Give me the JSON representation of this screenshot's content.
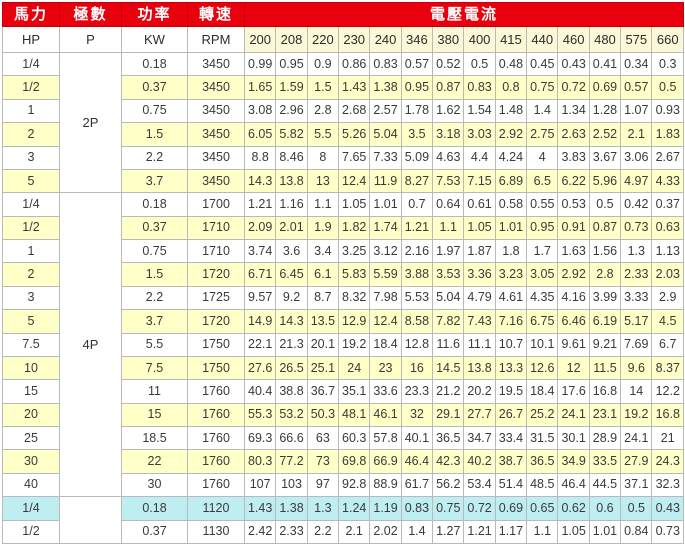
{
  "table": {
    "groups": {
      "hp": "馬力",
      "poles": "極數",
      "power": "功率",
      "speed": "轉速",
      "voltage_current": "電壓電流"
    },
    "unit_headers": [
      "HP",
      "P",
      "KW",
      "RPM"
    ],
    "voltage_headers": [
      "200",
      "208",
      "220",
      "230",
      "240",
      "346",
      "380",
      "400",
      "415",
      "440",
      "460",
      "480",
      "575",
      "660"
    ],
    "colors": {
      "header_band_red": "#e8000d",
      "row_yellow": "#ffffc8",
      "row_cyan": "#bfeef2",
      "grid_line": "#b9b9b9"
    },
    "sections": [
      {
        "pole_label": "2P",
        "rows": [
          {
            "hp": "1/4",
            "kw": "0.18",
            "rpm": "3450",
            "bg": "w",
            "currents": [
              "0.99",
              "0.95",
              "0.9",
              "0.86",
              "0.83",
              "0.57",
              "0.52",
              "0.5",
              "0.48",
              "0.45",
              "0.43",
              "0.41",
              "0.34",
              "0.3"
            ]
          },
          {
            "hp": "1/2",
            "kw": "0.37",
            "rpm": "3450",
            "bg": "y",
            "currents": [
              "1.65",
              "1.59",
              "1.5",
              "1.43",
              "1.38",
              "0.95",
              "0.87",
              "0.83",
              "0.8",
              "0.75",
              "0.72",
              "0.69",
              "0.57",
              "0.5"
            ]
          },
          {
            "hp": "1",
            "kw": "0.75",
            "rpm": "3450",
            "bg": "w",
            "currents": [
              "3.08",
              "2.96",
              "2.8",
              "2.68",
              "2.57",
              "1.78",
              "1.62",
              "1.54",
              "1.48",
              "1.4",
              "1.34",
              "1.28",
              "1.07",
              "0.93"
            ]
          },
          {
            "hp": "2",
            "kw": "1.5",
            "rpm": "3450",
            "bg": "y",
            "currents": [
              "6.05",
              "5.82",
              "5.5",
              "5.26",
              "5.04",
              "3.5",
              "3.18",
              "3.03",
              "2.92",
              "2.75",
              "2.63",
              "2.52",
              "2.1",
              "1.83"
            ]
          },
          {
            "hp": "3",
            "kw": "2.2",
            "rpm": "3450",
            "bg": "w",
            "currents": [
              "8.8",
              "8.46",
              "8",
              "7.65",
              "7.33",
              "5.09",
              "4.63",
              "4.4",
              "4.24",
              "4",
              "3.83",
              "3.67",
              "3.06",
              "2.67"
            ]
          },
          {
            "hp": "5",
            "kw": "3.7",
            "rpm": "3450",
            "bg": "y",
            "currents": [
              "14.3",
              "13.8",
              "13",
              "12.4",
              "11.9",
              "8.27",
              "7.53",
              "7.15",
              "6.89",
              "6.5",
              "6.22",
              "5.96",
              "4.97",
              "4.33"
            ]
          }
        ]
      },
      {
        "pole_label": "4P",
        "rows": [
          {
            "hp": "1/4",
            "kw": "0.18",
            "rpm": "1700",
            "bg": "w",
            "currents": [
              "1.21",
              "1.16",
              "1.1",
              "1.05",
              "1.01",
              "0.7",
              "0.64",
              "0.61",
              "0.58",
              "0.55",
              "0.53",
              "0.5",
              "0.42",
              "0.37"
            ]
          },
          {
            "hp": "1/2",
            "kw": "0.37",
            "rpm": "1710",
            "bg": "y",
            "currents": [
              "2.09",
              "2.01",
              "1.9",
              "1.82",
              "1.74",
              "1.21",
              "1.1",
              "1.05",
              "1.01",
              "0.95",
              "0.91",
              "0.87",
              "0.73",
              "0.63"
            ]
          },
          {
            "hp": "1",
            "kw": "0.75",
            "rpm": "1710",
            "bg": "w",
            "currents": [
              "3.74",
              "3.6",
              "3.4",
              "3.25",
              "3.12",
              "2.16",
              "1.97",
              "1.87",
              "1.8",
              "1.7",
              "1.63",
              "1.56",
              "1.3",
              "1.13"
            ]
          },
          {
            "hp": "2",
            "kw": "1.5",
            "rpm": "1720",
            "bg": "y",
            "currents": [
              "6.71",
              "6.45",
              "6.1",
              "5.83",
              "5.59",
              "3.88",
              "3.53",
              "3.36",
              "3.23",
              "3.05",
              "2.92",
              "2.8",
              "2.33",
              "2.03"
            ]
          },
          {
            "hp": "3",
            "kw": "2.2",
            "rpm": "1725",
            "bg": "w",
            "currents": [
              "9.57",
              "9.2",
              "8.7",
              "8.32",
              "7.98",
              "5.53",
              "5.04",
              "4.79",
              "4.61",
              "4.35",
              "4.16",
              "3.99",
              "3.33",
              "2.9"
            ]
          },
          {
            "hp": "5",
            "kw": "3.7",
            "rpm": "1720",
            "bg": "y",
            "currents": [
              "14.9",
              "14.3",
              "13.5",
              "12.9",
              "12.4",
              "8.58",
              "7.82",
              "7.43",
              "7.16",
              "6.75",
              "6.46",
              "6.19",
              "5.17",
              "4.5"
            ]
          },
          {
            "hp": "7.5",
            "kw": "5.5",
            "rpm": "1750",
            "bg": "w",
            "currents": [
              "22.1",
              "21.3",
              "20.1",
              "19.2",
              "18.4",
              "12.8",
              "11.6",
              "11.1",
              "10.7",
              "10.1",
              "9.61",
              "9.21",
              "7.69",
              "6.7"
            ]
          },
          {
            "hp": "10",
            "kw": "7.5",
            "rpm": "1750",
            "bg": "y",
            "currents": [
              "27.6",
              "26.5",
              "25.1",
              "24",
              "23",
              "16",
              "14.5",
              "13.8",
              "13.3",
              "12.6",
              "12",
              "11.5",
              "9.6",
              "8.37"
            ]
          },
          {
            "hp": "15",
            "kw": "11",
            "rpm": "1760",
            "bg": "w",
            "currents": [
              "40.4",
              "38.8",
              "36.7",
              "35.1",
              "33.6",
              "23.3",
              "21.2",
              "20.2",
              "19.5",
              "18.4",
              "17.6",
              "16.8",
              "14",
              "12.2"
            ]
          },
          {
            "hp": "20",
            "kw": "15",
            "rpm": "1760",
            "bg": "y",
            "currents": [
              "55.3",
              "53.2",
              "50.3",
              "48.1",
              "46.1",
              "32",
              "29.1",
              "27.7",
              "26.7",
              "25.2",
              "24.1",
              "23.1",
              "19.2",
              "16.8"
            ]
          },
          {
            "hp": "25",
            "kw": "18.5",
            "rpm": "1760",
            "bg": "w",
            "currents": [
              "69.3",
              "66.6",
              "63",
              "60.3",
              "57.8",
              "40.1",
              "36.5",
              "34.7",
              "33.4",
              "31.5",
              "30.1",
              "28.9",
              "24.1",
              "21"
            ]
          },
          {
            "hp": "30",
            "kw": "22",
            "rpm": "1760",
            "bg": "y",
            "currents": [
              "80.3",
              "77.2",
              "73",
              "69.8",
              "66.9",
              "46.4",
              "42.3",
              "40.2",
              "38.7",
              "36.5",
              "34.9",
              "33.5",
              "27.9",
              "24.3"
            ]
          },
          {
            "hp": "40",
            "kw": "30",
            "rpm": "1760",
            "bg": "w",
            "currents": [
              "107",
              "103",
              "97",
              "92.8",
              "88.9",
              "61.7",
              "56.2",
              "53.4",
              "51.4",
              "48.5",
              "46.4",
              "44.5",
              "37.1",
              "32.3"
            ]
          }
        ]
      },
      {
        "pole_label": "",
        "rows": [
          {
            "hp": "1/4",
            "kw": "0.18",
            "rpm": "1120",
            "bg": "c",
            "currents": [
              "1.43",
              "1.38",
              "1.3",
              "1.24",
              "1.19",
              "0.83",
              "0.75",
              "0.72",
              "0.69",
              "0.65",
              "0.62",
              "0.6",
              "0.5",
              "0.43"
            ]
          },
          {
            "hp": "1/2",
            "kw": "0.37",
            "rpm": "1130",
            "bg": "w",
            "currents": [
              "2.42",
              "2.33",
              "2.2",
              "2.1",
              "2.02",
              "1.4",
              "1.27",
              "1.21",
              "1.17",
              "1.1",
              "1.05",
              "1.01",
              "0.84",
              "0.73"
            ]
          }
        ]
      }
    ]
  }
}
